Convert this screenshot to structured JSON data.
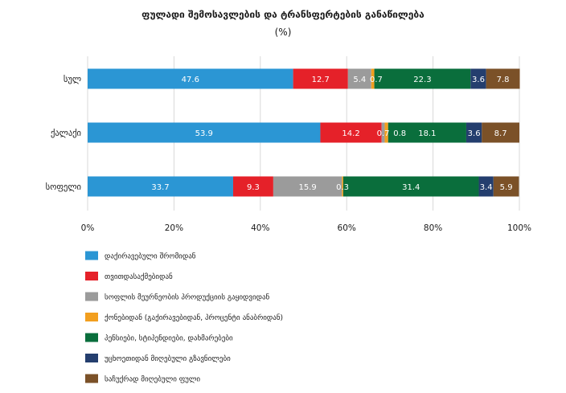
{
  "chart_data": {
    "type": "bar",
    "orientation": "horizontal",
    "stacked": true,
    "title": "ფულადი შემოსავლების და ტრანსფერტების განაწილება",
    "subtitle": "(%)",
    "categories": [
      "სულ",
      "ქალაქი",
      "სოფელი"
    ],
    "series": [
      {
        "name": "დაქირავებული შრომიდან",
        "color": "#2b96d4",
        "label_color": "#ffffff",
        "values": [
          47.6,
          53.9,
          33.7
        ]
      },
      {
        "name": "თვითდასაქმებიდან",
        "color": "#e52129",
        "label_color": "#ffffff",
        "values": [
          12.7,
          14.2,
          9.3
        ]
      },
      {
        "name": "სოფლის მეურნეობის პროდუქციის გაყიდვიდან",
        "color": "#9b9b9b",
        "label_color": "#ffffff",
        "values": [
          5.4,
          0.7,
          15.9
        ]
      },
      {
        "name": "ქონებიდან (გაქირავებიდან, პროცენტი ანაბრიდან)",
        "color": "#f29f1f",
        "label_color": "#ffffff",
        "values": [
          0.7,
          0.8,
          0.3
        ]
      },
      {
        "name": "პენსიები, სტიპენდიები, დახმარებები",
        "color": "#0a6e3c",
        "label_color": "#ffffff",
        "values": [
          22.3,
          18.1,
          31.4
        ]
      },
      {
        "name": "უცხოეთიდან მიღებული გზავნილები",
        "color": "#243e6e",
        "label_color": "#ffffff",
        "values": [
          3.6,
          3.6,
          3.4
        ]
      },
      {
        "name": "საჩუქრად მიღებული ფული",
        "color": "#7b5128",
        "label_color": "#ffffff",
        "values": [
          7.8,
          8.7,
          5.9
        ]
      }
    ],
    "data_labels": [
      [
        "47.6",
        "12.7",
        "5.4",
        "0.7",
        "22.3",
        "3.6",
        "7.8"
      ],
      [
        "53.9",
        "14.2",
        "0.7",
        "0.8",
        "18.1",
        "3.6",
        "8.7"
      ],
      [
        "33.7",
        "9.3",
        "15.9",
        "0.3",
        "31.4",
        "3.4",
        "5.9"
      ]
    ],
    "xlim": [
      0,
      100
    ],
    "xticks": [
      0,
      20,
      40,
      60,
      80,
      100
    ],
    "xtick_labels": [
      "0%",
      "20%",
      "40%",
      "60%",
      "80%",
      "100%"
    ],
    "grid": "vertical",
    "legend_position": "bottom-left"
  }
}
